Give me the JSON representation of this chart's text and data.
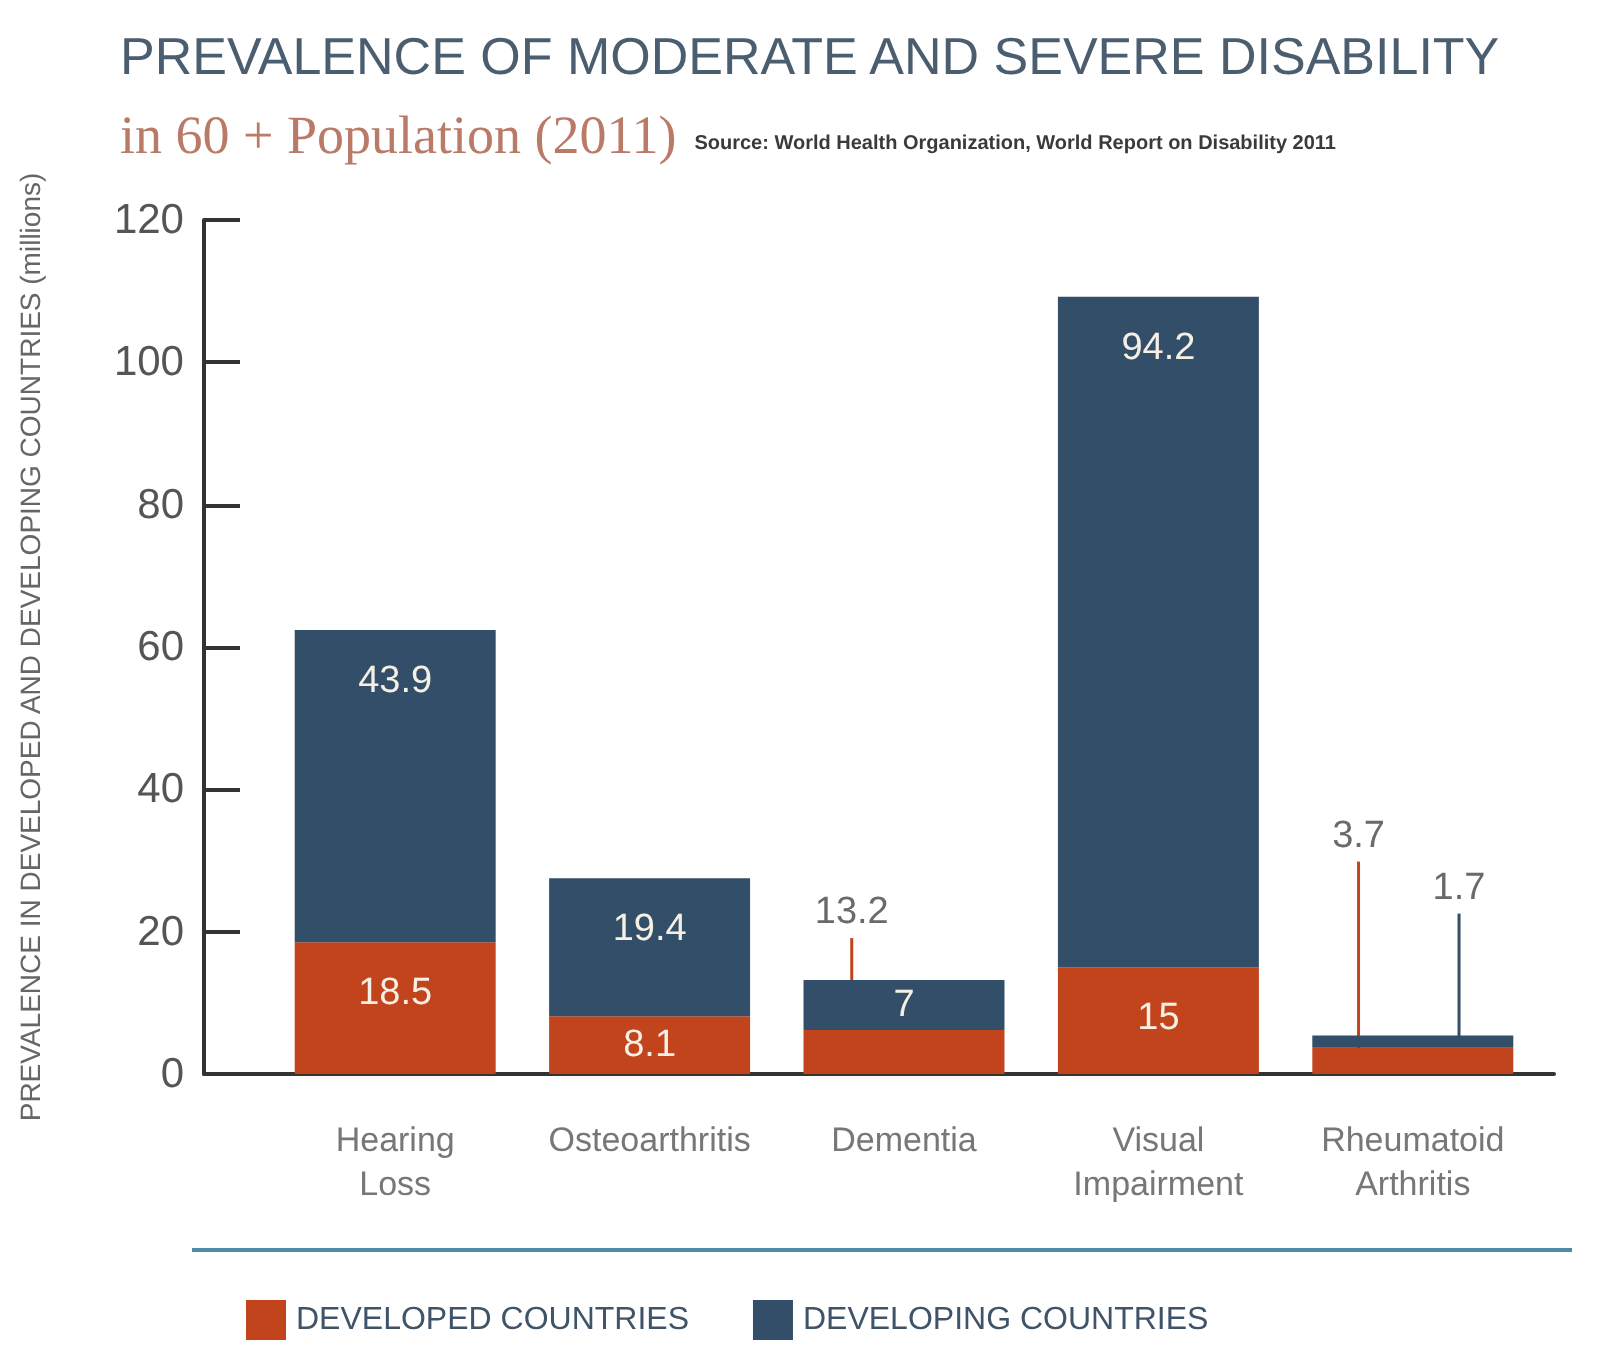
{
  "chart_data": {
    "type": "bar",
    "title": "PREVALENCE OF MODERATE AND SEVERE DISABILITY",
    "subtitle": "in 60 + Population (2011)",
    "annotations": [
      "Source: World Health Organization, World Report on Disability 2011"
    ],
    "ylabel": "PREVALENCE IN DEVELOPED AND DEVELOPING COUNTRIES (millions)",
    "categories": [
      "Hearing\nLoss",
      "Osteoarthritis",
      "Dementia",
      "Visual\nImpairment",
      "Rheumatoid\nArthritis"
    ],
    "series": [
      {
        "name": "DEVELOPED COUNTRIES",
        "color": "#c1441d",
        "values": [
          18.5,
          8.1,
          6.2,
          15,
          3.7
        ],
        "value_labels": [
          "18.5",
          "8.1",
          null,
          "15",
          "3.7"
        ]
      },
      {
        "name": "DEVELOPING COUNTRIES",
        "color": "#334e69",
        "values": [
          43.9,
          19.4,
          7,
          94.2,
          1.7
        ],
        "value_labels": [
          "43.9",
          "19.4",
          "7",
          "94.2",
          "1.7"
        ]
      }
    ],
    "stacked": true,
    "totals": [
      null,
      null,
      "13.2",
      null,
      null
    ],
    "ylim": [
      0,
      120
    ],
    "yticks": [
      0,
      20,
      40,
      60,
      80,
      100,
      120
    ],
    "grid": false,
    "legend": "bottom left"
  }
}
